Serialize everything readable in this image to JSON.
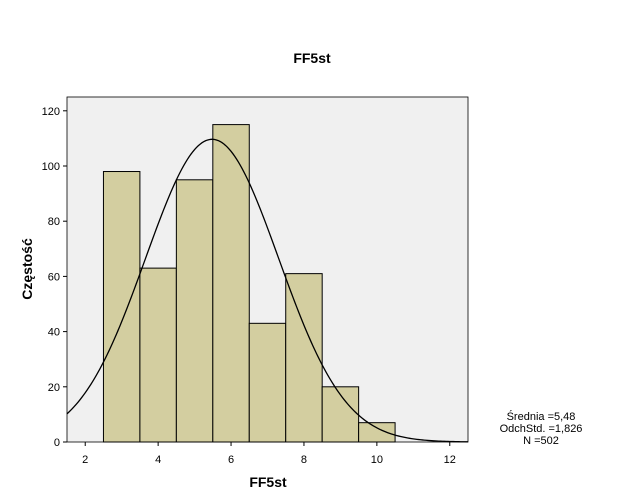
{
  "chart_data": {
    "type": "bar",
    "title": "FF5st",
    "xlabel": "FF5st",
    "ylabel": "Częstość",
    "xlim": [
      1.5,
      12.5
    ],
    "ylim": [
      0,
      125
    ],
    "x_ticks": [
      2,
      4,
      6,
      8,
      10,
      12
    ],
    "y_ticks": [
      0,
      20,
      40,
      60,
      80,
      100,
      120
    ],
    "bins": [
      {
        "start": 2.5,
        "end": 3.5,
        "count": 98
      },
      {
        "start": 3.5,
        "end": 4.5,
        "count": 63
      },
      {
        "start": 4.5,
        "end": 5.5,
        "count": 95
      },
      {
        "start": 5.5,
        "end": 6.5,
        "count": 115
      },
      {
        "start": 6.5,
        "end": 7.5,
        "count": 43
      },
      {
        "start": 7.5,
        "end": 8.5,
        "count": 61
      },
      {
        "start": 8.5,
        "end": 9.5,
        "count": 20
      },
      {
        "start": 9.5,
        "end": 10.5,
        "count": 7
      }
    ],
    "normal_curve": {
      "mean": 5.48,
      "sd": 1.826,
      "n": 502,
      "bin_width": 1
    },
    "colors": {
      "plot_background": "#f0f0f0",
      "bar_fill": "#d3cea0",
      "bar_stroke": "#000000",
      "curve": "#000000"
    },
    "grid": false,
    "stats_box": {
      "mean_line": "Średnia =5,48",
      "sd_line": "OdchStd. =1,826",
      "n_line": "N =502"
    }
  }
}
